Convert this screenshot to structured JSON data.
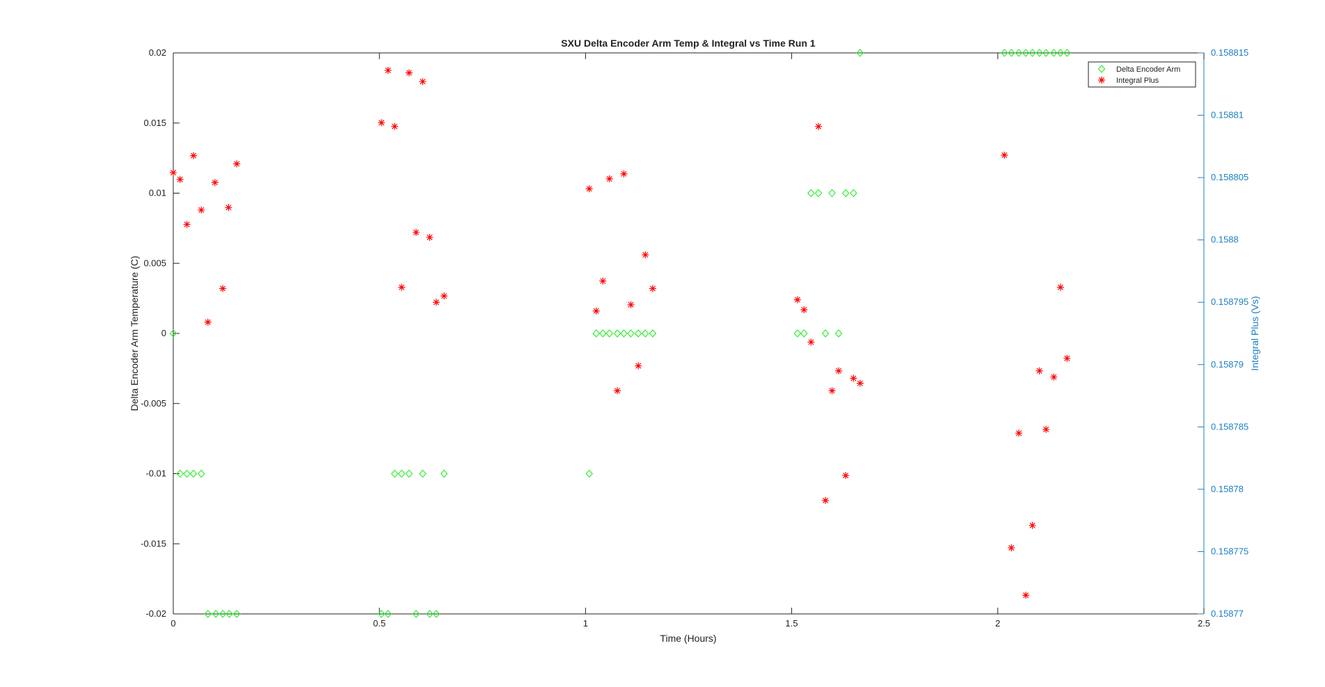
{
  "chart_data": {
    "type": "scatter",
    "title": "SXU Delta Encoder Arm Temp & Integral vs Time Run 1",
    "x_label": "Time (Hours)",
    "y_label": "Delta Encoder Arm Temperature (C)",
    "y2_label": "Integral Plus (Vs)",
    "xlim": [
      0,
      2.5
    ],
    "xticks": [
      0,
      0.5,
      1,
      1.5,
      2,
      2.5
    ],
    "ylim": [
      -0.02,
      0.02
    ],
    "yticks": [
      -0.02,
      -0.015,
      -0.01,
      -0.005,
      0,
      0.005,
      0.01,
      0.015,
      0.02
    ],
    "y2lim": [
      0.15877,
      0.158815
    ],
    "y2ticks": [
      0.15877,
      0.158775,
      0.15878,
      0.158785,
      0.15879,
      0.158795,
      0.1588,
      0.158805,
      0.15881,
      0.158815
    ],
    "y2_color": "#1a7fc1",
    "legend": "northeast",
    "grid": false,
    "series": [
      {
        "name": "Delta Encoder Arm",
        "color": "#33ee33",
        "marker": "diamond",
        "x": [
          0,
          0.0165,
          0.033,
          0.049,
          0.068,
          0.084,
          0.103,
          0.12,
          0.136,
          0.154,
          0.505,
          0.521,
          0.537,
          0.554,
          0.572,
          0.605,
          0.657,
          0.589,
          0.622,
          0.638,
          1.009,
          1.026,
          1.042,
          1.058,
          1.077,
          1.093,
          1.11,
          1.128,
          1.145,
          1.163,
          1.514,
          1.53,
          1.547,
          1.565,
          1.598,
          1.631,
          1.65,
          1.582,
          1.614,
          1.666,
          2.016,
          2.033,
          2.051,
          2.068,
          2.084,
          2.101,
          2.117,
          2.136,
          2.152,
          2.168
        ],
        "values": [
          0,
          -0.01,
          -0.01,
          -0.01,
          -0.01,
          -0.02,
          -0.02,
          -0.02,
          -0.02,
          -0.02,
          -0.02,
          -0.02,
          -0.01,
          -0.01,
          -0.01,
          -0.01,
          -0.01,
          -0.02,
          -0.02,
          -0.02,
          -0.01,
          0,
          0,
          0,
          0,
          0,
          0,
          0,
          0,
          0,
          0,
          0,
          0.01,
          0.01,
          0.01,
          0.01,
          0.01,
          0,
          0,
          0.02,
          0.02,
          0.02,
          0.02,
          0.02,
          0.02,
          0.02,
          0.02,
          0.02,
          0.02,
          0.02
        ]
      },
      {
        "name": "Integral Plus",
        "color": "#ff0000",
        "marker": "star",
        "axis": "y2",
        "x": [
          0,
          0.0165,
          0.033,
          0.049,
          0.068,
          0.101,
          0.12,
          0.084,
          0.134,
          0.154,
          0.505,
          0.521,
          0.537,
          0.554,
          0.572,
          0.589,
          0.605,
          0.622,
          0.638,
          0.657,
          1.009,
          1.026,
          1.042,
          1.058,
          1.077,
          1.093,
          1.11,
          1.128,
          1.145,
          1.163,
          1.514,
          1.53,
          1.547,
          1.565,
          1.582,
          1.598,
          1.614,
          1.631,
          1.65,
          1.666,
          2.016,
          2.033,
          2.051,
          2.068,
          2.084,
          2.101,
          2.117,
          2.136,
          2.152,
          2.168
        ],
        "values": [
          0.1588054,
          0.15880485,
          0.15880124,
          0.15880676,
          0.1588024,
          0.1588046,
          0.1587961,
          0.1587934,
          0.1588026,
          0.1588061,
          0.1588094,
          0.1588136,
          0.1588091,
          0.1587962,
          0.1588134,
          0.1588006,
          0.1588127,
          0.1588002,
          0.158795,
          0.1587955,
          0.1588041,
          0.1587943,
          0.1587967,
          0.1588049,
          0.1587879,
          0.1588053,
          0.1587948,
          0.1587899,
          0.1587988,
          0.1587961,
          0.1587952,
          0.1587944,
          0.1587918,
          0.1588091,
          0.1587791,
          0.1587879,
          0.1587895,
          0.1587811,
          0.1587889,
          0.1587885,
          0.1588068,
          0.1587753,
          0.1587845,
          0.1587715,
          0.1587771,
          0.1587895,
          0.1587848,
          0.158789,
          0.1587962,
          0.1587905
        ]
      }
    ]
  }
}
